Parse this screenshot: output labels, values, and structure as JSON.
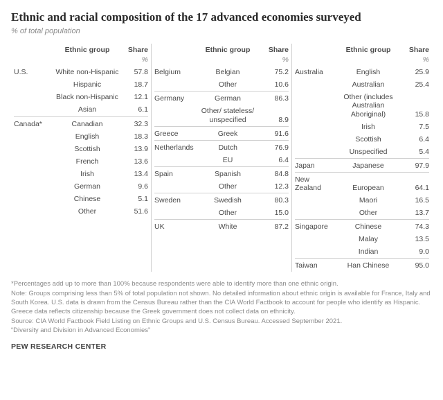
{
  "title": "Ethnic and racial composition of the 17 advanced economies surveyed",
  "subtitle": "% of total population",
  "headers": {
    "group": "Ethnic group",
    "share": "Share",
    "pct": "%"
  },
  "columns": [
    {
      "rows": [
        {
          "country": "U.S.",
          "group": "White non-Hispanic",
          "share": "57.8",
          "divider": false
        },
        {
          "country": "",
          "group": "Hispanic",
          "share": "18.7",
          "divider": false
        },
        {
          "country": "",
          "group": "Black non-Hispanic",
          "share": "12.1",
          "divider": false
        },
        {
          "country": "",
          "group": "Asian",
          "share": "6.1",
          "divider": false
        },
        {
          "country": "Canada*",
          "group": "Canadian",
          "share": "32.3",
          "divider": true
        },
        {
          "country": "",
          "group": "English",
          "share": "18.3",
          "divider": false
        },
        {
          "country": "",
          "group": "Scottish",
          "share": "13.9",
          "divider": false
        },
        {
          "country": "",
          "group": "French",
          "share": "13.6",
          "divider": false
        },
        {
          "country": "",
          "group": "Irish",
          "share": "13.4",
          "divider": false
        },
        {
          "country": "",
          "group": "German",
          "share": "9.6",
          "divider": false
        },
        {
          "country": "",
          "group": "Chinese",
          "share": "5.1",
          "divider": false
        },
        {
          "country": "",
          "group": "Other",
          "share": "51.6",
          "divider": false
        }
      ]
    },
    {
      "rows": [
        {
          "country": "Belgium",
          "group": "Belgian",
          "share": "75.2",
          "divider": false
        },
        {
          "country": "",
          "group": "Other",
          "share": "10.6",
          "divider": false
        },
        {
          "country": "Germany",
          "group": "German",
          "share": "86.3",
          "divider": true
        },
        {
          "country": "",
          "group": "Other/ stateless/ unspecified",
          "share": "8.9",
          "divider": false
        },
        {
          "country": "Greece",
          "group": "Greek",
          "share": "91.6",
          "divider": true
        },
        {
          "country": "Netherlands",
          "group": "Dutch",
          "share": "76.9",
          "divider": true
        },
        {
          "country": "",
          "group": "EU",
          "share": "6.4",
          "divider": false
        },
        {
          "country": "Spain",
          "group": "Spanish",
          "share": "84.8",
          "divider": true
        },
        {
          "country": "",
          "group": "Other",
          "share": "12.3",
          "divider": false
        },
        {
          "country": "Sweden",
          "group": "Swedish",
          "share": "80.3",
          "divider": true
        },
        {
          "country": "",
          "group": "Other",
          "share": "15.0",
          "divider": false
        },
        {
          "country": "UK",
          "group": "White",
          "share": "87.2",
          "divider": true
        }
      ]
    },
    {
      "rows": [
        {
          "country": "Australia",
          "group": "English",
          "share": "25.9",
          "divider": false
        },
        {
          "country": "",
          "group": "Australian",
          "share": "25.4",
          "divider": false
        },
        {
          "country": "",
          "group": "Other (includes Australian Aboriginal)",
          "share": "15.8",
          "divider": false
        },
        {
          "country": "",
          "group": "Irish",
          "share": "7.5",
          "divider": false
        },
        {
          "country": "",
          "group": "Scottish",
          "share": "6.4",
          "divider": false
        },
        {
          "country": "",
          "group": "Unspecified",
          "share": "5.4",
          "divider": false
        },
        {
          "country": "Japan",
          "group": "Japanese",
          "share": "97.9",
          "divider": true
        },
        {
          "country": "New Zealand",
          "group": "European",
          "share": "64.1",
          "divider": true
        },
        {
          "country": "",
          "group": "Maori",
          "share": "16.5",
          "divider": false
        },
        {
          "country": "",
          "group": "Other",
          "share": "13.7",
          "divider": false
        },
        {
          "country": "Singapore",
          "group": "Chinese",
          "share": "74.3",
          "divider": true
        },
        {
          "country": "",
          "group": "Malay",
          "share": "13.5",
          "divider": false
        },
        {
          "country": "",
          "group": "Indian",
          "share": "9.0",
          "divider": false
        },
        {
          "country": "Taiwan",
          "group": "Han Chinese",
          "share": "95.0",
          "divider": true
        }
      ]
    }
  ],
  "notes": [
    "*Percentages add up to more than 100% because respondents were able to identify more than one ethnic origin.",
    "Note: Groups comprising less than 5% of total population not shown. No detailed information about ethnic origin is available for France, Italy and South Korea. U.S. data is drawn from the Census Bureau rather than the CIA World Factbook to account for people who identify as Hispanic. Greece data reflects citizenship because the Greek government does not collect data on ethnicity.",
    "Source: CIA World Factbook Field Listing on Ethnic Groups and U.S. Census Bureau. Accessed September 2021.",
    "“Diversity and Division in Advanced Economies”"
  ],
  "footer": "PEW RESEARCH CENTER"
}
